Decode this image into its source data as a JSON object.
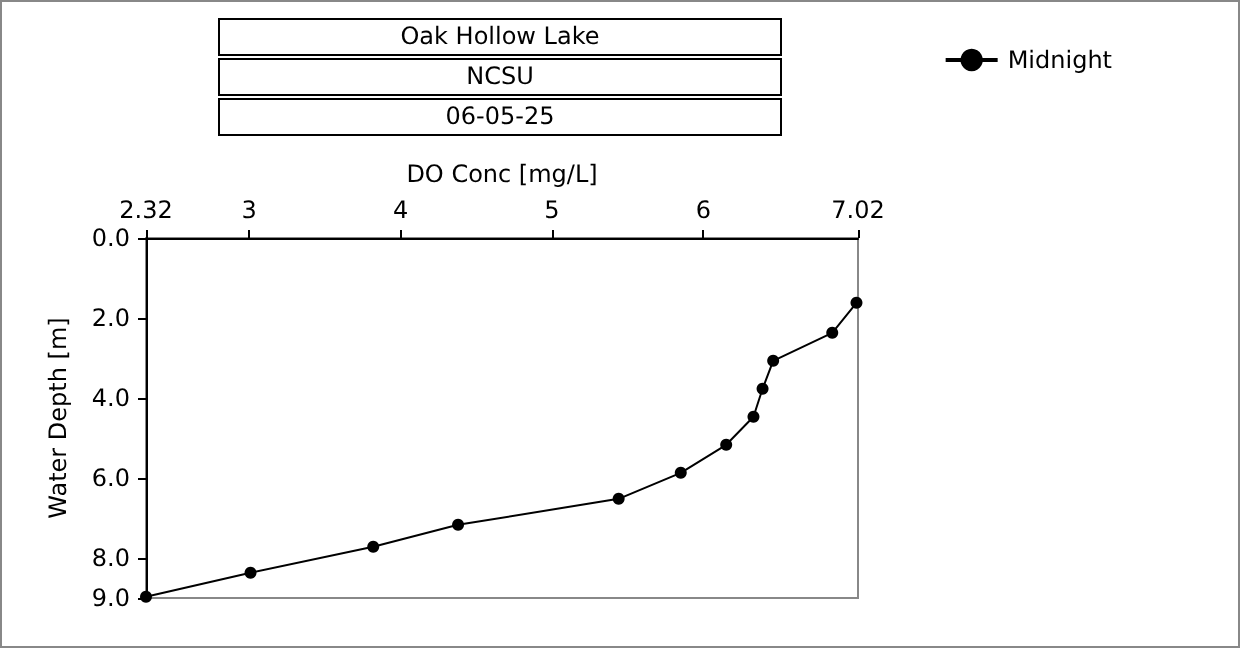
{
  "chart_data": {
    "type": "line",
    "title": "Oak Hollow Lake",
    "subtitle": "NCSU",
    "annotations": [
      "06-05-25"
    ],
    "xlabel": "DO Conc [mg/L]",
    "ylabel": "Water Depth [m]",
    "series": [
      {
        "name": "Midnight",
        "color": "#000000",
        "x": [
          7.01,
          6.85,
          6.46,
          6.39,
          6.33,
          6.15,
          5.85,
          5.44,
          4.38,
          3.82,
          3.01,
          2.32
        ],
        "values": [
          1.62,
          2.37,
          3.07,
          3.77,
          4.47,
          5.17,
          5.87,
          6.52,
          7.17,
          7.72,
          8.37,
          8.97
        ]
      }
    ],
    "xlim": [
      2.32,
      7.02
    ],
    "xticks": [
      2.32,
      3,
      4,
      5,
      6,
      7.02
    ],
    "ylim": [
      9.0,
      0.0
    ],
    "yticks": [
      {
        "value": 0,
        "label": "0.0"
      },
      {
        "value": 2,
        "label": "2.0"
      },
      {
        "value": 4,
        "label": "4.0"
      },
      {
        "value": 6,
        "label": "6.0"
      },
      {
        "value": 8,
        "label": "8.0"
      },
      {
        "value": 9,
        "label": "9.0"
      }
    ],
    "grid": false,
    "legend": "top right",
    "marker": "circle",
    "line_style": "solid"
  }
}
